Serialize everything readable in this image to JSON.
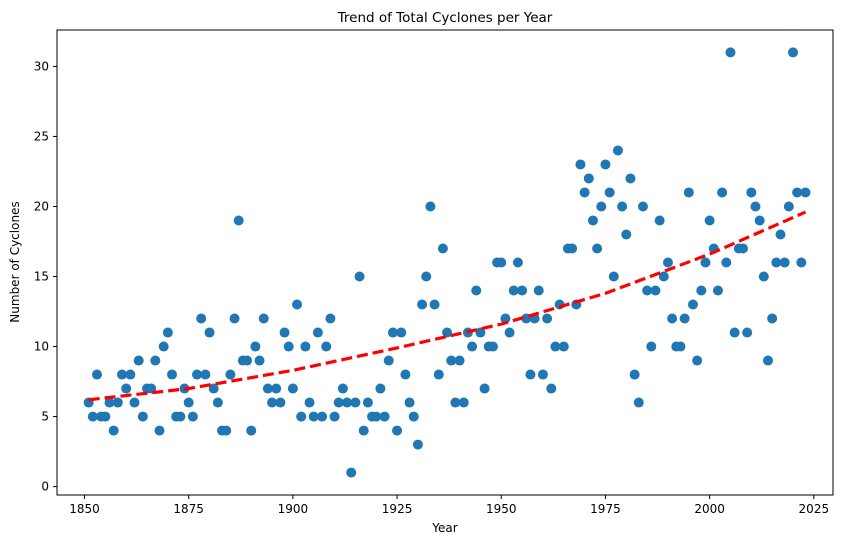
{
  "chart_data": {
    "type": "scatter",
    "title": "Trend of Total Cyclones per Year",
    "xlabel": "Year",
    "ylabel": "Number of Cyclones",
    "xlim": [
      1843.4,
      2029.6
    ],
    "ylim": [
      -0.6,
      32.6
    ],
    "xticks": [
      1850,
      1875,
      1900,
      1925,
      1950,
      1975,
      2000,
      2025
    ],
    "yticks": [
      0,
      5,
      10,
      15,
      20,
      25,
      30
    ],
    "grid": false,
    "colors": {
      "points": "#1f77b4",
      "trend": "#ff0000"
    },
    "series": [
      {
        "type": "scatter",
        "points": [
          [
            1851,
            6
          ],
          [
            1852,
            5
          ],
          [
            1853,
            8
          ],
          [
            1854,
            5
          ],
          [
            1855,
            5
          ],
          [
            1856,
            6
          ],
          [
            1857,
            4
          ],
          [
            1858,
            6
          ],
          [
            1859,
            8
          ],
          [
            1860,
            7
          ],
          [
            1861,
            8
          ],
          [
            1862,
            6
          ],
          [
            1863,
            9
          ],
          [
            1864,
            5
          ],
          [
            1865,
            7
          ],
          [
            1866,
            7
          ],
          [
            1867,
            9
          ],
          [
            1868,
            4
          ],
          [
            1869,
            10
          ],
          [
            1870,
            11
          ],
          [
            1871,
            8
          ],
          [
            1872,
            5
          ],
          [
            1873,
            5
          ],
          [
            1874,
            7
          ],
          [
            1875,
            6
          ],
          [
            1876,
            5
          ],
          [
            1877,
            8
          ],
          [
            1878,
            12
          ],
          [
            1879,
            8
          ],
          [
            1880,
            11
          ],
          [
            1881,
            7
          ],
          [
            1882,
            6
          ],
          [
            1883,
            4
          ],
          [
            1884,
            4
          ],
          [
            1885,
            8
          ],
          [
            1886,
            12
          ],
          [
            1887,
            19
          ],
          [
            1888,
            9
          ],
          [
            1889,
            9
          ],
          [
            1890,
            4
          ],
          [
            1891,
            10
          ],
          [
            1892,
            9
          ],
          [
            1893,
            12
          ],
          [
            1894,
            7
          ],
          [
            1895,
            6
          ],
          [
            1896,
            7
          ],
          [
            1897,
            6
          ],
          [
            1898,
            11
          ],
          [
            1899,
            10
          ],
          [
            1900,
            7
          ],
          [
            1901,
            13
          ],
          [
            1902,
            5
          ],
          [
            1903,
            10
          ],
          [
            1904,
            6
          ],
          [
            1905,
            5
          ],
          [
            1906,
            11
          ],
          [
            1907,
            5
          ],
          [
            1908,
            10
          ],
          [
            1909,
            12
          ],
          [
            1910,
            5
          ],
          [
            1911,
            6
          ],
          [
            1912,
            7
          ],
          [
            1913,
            6
          ],
          [
            1914,
            1
          ],
          [
            1915,
            6
          ],
          [
            1916,
            15
          ],
          [
            1917,
            4
          ],
          [
            1918,
            6
          ],
          [
            1919,
            5
          ],
          [
            1920,
            5
          ],
          [
            1921,
            7
          ],
          [
            1922,
            5
          ],
          [
            1923,
            9
          ],
          [
            1924,
            11
          ],
          [
            1925,
            4
          ],
          [
            1926,
            11
          ],
          [
            1927,
            8
          ],
          [
            1928,
            6
          ],
          [
            1929,
            5
          ],
          [
            1930,
            3
          ],
          [
            1931,
            13
          ],
          [
            1932,
            15
          ],
          [
            1933,
            20
          ],
          [
            1934,
            13
          ],
          [
            1935,
            8
          ],
          [
            1936,
            17
          ],
          [
            1937,
            11
          ],
          [
            1938,
            9
          ],
          [
            1939,
            6
          ],
          [
            1940,
            9
          ],
          [
            1941,
            6
          ],
          [
            1942,
            11
          ],
          [
            1943,
            10
          ],
          [
            1944,
            14
          ],
          [
            1945,
            11
          ],
          [
            1946,
            7
          ],
          [
            1947,
            10
          ],
          [
            1948,
            10
          ],
          [
            1949,
            16
          ],
          [
            1950,
            16
          ],
          [
            1951,
            12
          ],
          [
            1952,
            11
          ],
          [
            1953,
            14
          ],
          [
            1954,
            16
          ],
          [
            1955,
            14
          ],
          [
            1956,
            12
          ],
          [
            1957,
            8
          ],
          [
            1958,
            12
          ],
          [
            1959,
            14
          ],
          [
            1960,
            8
          ],
          [
            1961,
            12
          ],
          [
            1962,
            7
          ],
          [
            1963,
            10
          ],
          [
            1964,
            13
          ],
          [
            1965,
            10
          ],
          [
            1966,
            17
          ],
          [
            1967,
            17
          ],
          [
            1968,
            13
          ],
          [
            1969,
            23
          ],
          [
            1970,
            21
          ],
          [
            1971,
            22
          ],
          [
            1972,
            19
          ],
          [
            1973,
            17
          ],
          [
            1974,
            20
          ],
          [
            1975,
            23
          ],
          [
            1976,
            21
          ],
          [
            1977,
            15
          ],
          [
            1978,
            24
          ],
          [
            1979,
            20
          ],
          [
            1980,
            18
          ],
          [
            1981,
            22
          ],
          [
            1982,
            8
          ],
          [
            1983,
            6
          ],
          [
            1984,
            20
          ],
          [
            1985,
            14
          ],
          [
            1986,
            10
          ],
          [
            1987,
            14
          ],
          [
            1988,
            19
          ],
          [
            1989,
            15
          ],
          [
            1990,
            16
          ],
          [
            1991,
            12
          ],
          [
            1992,
            10
          ],
          [
            1993,
            10
          ],
          [
            1994,
            12
          ],
          [
            1995,
            21
          ],
          [
            1996,
            13
          ],
          [
            1997,
            9
          ],
          [
            1998,
            14
          ],
          [
            1999,
            16
          ],
          [
            2000,
            19
          ],
          [
            2001,
            17
          ],
          [
            2002,
            14
          ],
          [
            2003,
            21
          ],
          [
            2004,
            16
          ],
          [
            2005,
            31
          ],
          [
            2006,
            11
          ],
          [
            2007,
            17
          ],
          [
            2008,
            17
          ],
          [
            2009,
            11
          ],
          [
            2010,
            21
          ],
          [
            2011,
            20
          ],
          [
            2012,
            19
          ],
          [
            2013,
            15
          ],
          [
            2014,
            9
          ],
          [
            2015,
            12
          ],
          [
            2016,
            16
          ],
          [
            2017,
            18
          ],
          [
            2018,
            16
          ],
          [
            2019,
            20
          ],
          [
            2020,
            31
          ],
          [
            2021,
            21
          ],
          [
            2022,
            16
          ],
          [
            2023,
            21
          ]
        ]
      },
      {
        "type": "line",
        "style": "dashed",
        "x": [
          1851,
          1875,
          1900,
          1925,
          1950,
          1975,
          2000,
          2023
        ],
        "y": [
          6.2,
          7.0,
          8.3,
          9.9,
          11.6,
          13.8,
          16.6,
          19.6
        ]
      }
    ]
  }
}
